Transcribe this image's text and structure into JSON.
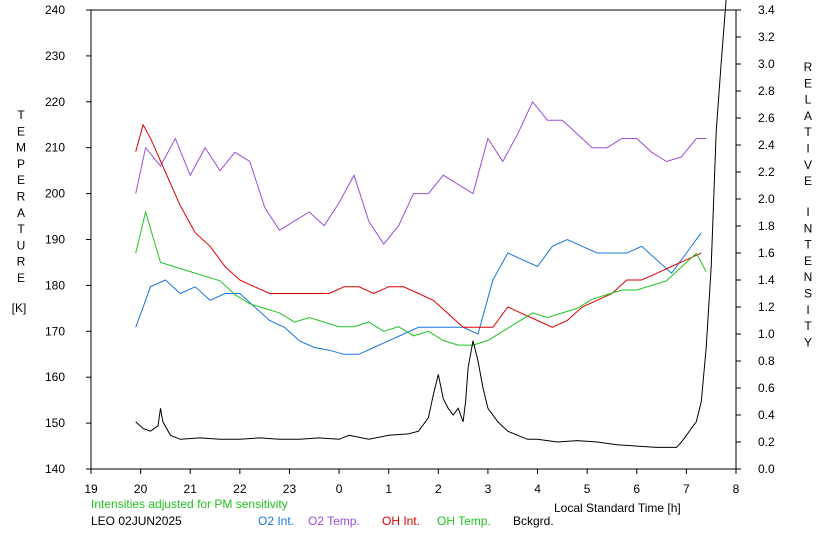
{
  "chart_data": {
    "type": "line",
    "left_axis": {
      "label_letters": [
        "T",
        "E",
        "M",
        "P",
        "E",
        "R",
        "A",
        "T",
        "U",
        "R",
        "E"
      ],
      "unit": "[K]",
      "ylim": [
        140,
        240
      ],
      "ticks": [
        "140",
        "150",
        "160",
        "170",
        "180",
        "190",
        "200",
        "210",
        "220",
        "230",
        "240"
      ]
    },
    "right_axis": {
      "label_letters_1": [
        "R",
        "E",
        "L",
        "A",
        "T",
        "I",
        "V",
        "E"
      ],
      "label_letters_2": [
        "I",
        "N",
        "T",
        "E",
        "N",
        "S",
        "I",
        "T",
        "Y"
      ],
      "ylim": [
        0.0,
        3.4
      ],
      "ticks": [
        "0.0",
        "0.2",
        "0.4",
        "0.6",
        "0.8",
        "1.0",
        "1.2",
        "1.4",
        "1.6",
        "1.8",
        "2.0",
        "2.2",
        "2.4",
        "2.6",
        "2.8",
        "3.0",
        "3.2",
        "3.4"
      ]
    },
    "x_axis": {
      "label": "Local Standard Time [h]",
      "xlim": [
        19,
        32
      ],
      "ticks": [
        "19",
        "20",
        "21",
        "22",
        "23",
        "0",
        "1",
        "2",
        "3",
        "4",
        "5",
        "6",
        "7",
        "8"
      ]
    },
    "note": "Intensities adjusted for PM sensitivity",
    "station": "LEO 02JUN2025",
    "legend": [
      {
        "label": "O2 Int.",
        "color": "#1a75e0"
      },
      {
        "label": "O2 Temp.",
        "color": "#9b4fd8"
      },
      {
        "label": "OH Int.",
        "color": "#e00000"
      },
      {
        "label": "OH Temp.",
        "color": "#22c322"
      },
      {
        "label": "Bckgrd.",
        "color": "#000000"
      }
    ],
    "series": [
      {
        "name": "O2 Int.",
        "axis": "right",
        "color": "#1a75e0",
        "x": [
          19.9,
          20.2,
          20.5,
          20.8,
          21.1,
          21.4,
          21.7,
          22.0,
          22.3,
          22.6,
          22.9,
          23.2,
          23.5,
          23.8,
          24.1,
          24.4,
          24.7,
          25.0,
          25.3,
          25.6,
          25.9,
          26.2,
          26.5,
          26.8,
          27.1,
          27.4,
          27.7,
          28.0,
          28.3,
          28.6,
          28.9,
          29.2,
          29.5,
          29.8,
          30.1,
          30.4,
          30.7,
          31.0,
          31.3
        ],
        "y": [
          1.05,
          1.35,
          1.4,
          1.3,
          1.35,
          1.25,
          1.3,
          1.3,
          1.2,
          1.1,
          1.05,
          0.95,
          0.9,
          0.88,
          0.85,
          0.85,
          0.9,
          0.95,
          1.0,
          1.05,
          1.05,
          1.05,
          1.05,
          1.0,
          1.4,
          1.6,
          1.55,
          1.5,
          1.65,
          1.7,
          1.65,
          1.6,
          1.6,
          1.6,
          1.65,
          1.55,
          1.45,
          1.6,
          1.75
        ]
      },
      {
        "name": "O2 Temp.",
        "axis": "left",
        "color": "#9b4fd8",
        "x": [
          19.9,
          20.1,
          20.4,
          20.7,
          21.0,
          21.3,
          21.6,
          21.9,
          22.2,
          22.5,
          22.8,
          23.1,
          23.4,
          23.7,
          24.0,
          24.3,
          24.6,
          24.9,
          25.2,
          25.5,
          25.8,
          26.1,
          26.4,
          26.7,
          27.0,
          27.3,
          27.6,
          27.9,
          28.2,
          28.5,
          28.8,
          29.1,
          29.4,
          29.7,
          30.0,
          30.3,
          30.6,
          30.9,
          31.2,
          31.4
        ],
        "y": [
          200,
          210,
          206,
          212,
          204,
          210,
          205,
          209,
          207,
          197,
          192,
          194,
          196,
          193,
          198,
          204,
          194,
          189,
          193,
          200,
          200,
          204,
          202,
          200,
          212,
          207,
          213,
          220,
          216,
          216,
          213,
          210,
          210,
          212,
          212,
          209,
          207,
          208,
          212,
          212
        ]
      },
      {
        "name": "OH Int.",
        "axis": "right",
        "color": "#e00000",
        "x": [
          19.9,
          20.05,
          20.2,
          20.5,
          20.8,
          21.1,
          21.4,
          21.7,
          22.0,
          22.3,
          22.6,
          22.9,
          23.2,
          23.5,
          23.8,
          24.1,
          24.4,
          24.7,
          25.0,
          25.3,
          25.6,
          25.9,
          26.2,
          26.5,
          26.8,
          27.1,
          27.4,
          27.7,
          28.0,
          28.3,
          28.6,
          28.9,
          29.2,
          29.5,
          29.8,
          30.1,
          30.4,
          30.7,
          31.0,
          31.3
        ],
        "y": [
          2.35,
          2.55,
          2.45,
          2.2,
          1.95,
          1.75,
          1.65,
          1.5,
          1.4,
          1.35,
          1.3,
          1.3,
          1.3,
          1.3,
          1.3,
          1.35,
          1.35,
          1.3,
          1.35,
          1.35,
          1.3,
          1.25,
          1.15,
          1.05,
          1.05,
          1.05,
          1.2,
          1.15,
          1.1,
          1.05,
          1.1,
          1.2,
          1.25,
          1.3,
          1.4,
          1.4,
          1.45,
          1.5,
          1.55,
          1.6
        ]
      },
      {
        "name": "OH Temp.",
        "axis": "left",
        "color": "#22c322",
        "x": [
          19.9,
          20.1,
          20.4,
          20.7,
          21.0,
          21.3,
          21.6,
          21.9,
          22.2,
          22.5,
          22.8,
          23.1,
          23.4,
          23.7,
          24.0,
          24.3,
          24.6,
          24.9,
          25.2,
          25.5,
          25.8,
          26.1,
          26.4,
          26.7,
          27.0,
          27.3,
          27.6,
          27.9,
          28.2,
          28.5,
          28.8,
          29.1,
          29.4,
          29.7,
          30.0,
          30.3,
          30.6,
          30.9,
          31.2,
          31.4
        ],
        "y": [
          187,
          196,
          185,
          184,
          183,
          182,
          181,
          178,
          176,
          175,
          174,
          172,
          173,
          172,
          171,
          171,
          172,
          170,
          171,
          169,
          170,
          168,
          167,
          167,
          168,
          170,
          172,
          174,
          173,
          174,
          175,
          177,
          178,
          179,
          179,
          180,
          181,
          184,
          187,
          183
        ]
      },
      {
        "name": "Bckgrd.",
        "axis": "right",
        "color": "#000000",
        "x": [
          19.9,
          20.05,
          20.2,
          20.35,
          20.4,
          20.45,
          20.6,
          20.8,
          21.2,
          21.6,
          22.0,
          22.4,
          22.8,
          23.2,
          23.6,
          24.0,
          24.2,
          24.6,
          25.0,
          25.4,
          25.6,
          25.8,
          25.9,
          26.0,
          26.1,
          26.2,
          26.3,
          26.4,
          26.5,
          26.55,
          26.6,
          26.7,
          26.8,
          26.9,
          27.0,
          27.2,
          27.4,
          27.6,
          27.8,
          28.0,
          28.4,
          28.8,
          29.2,
          29.6,
          30.0,
          30.4,
          30.8,
          30.9,
          31.0,
          31.1,
          31.2,
          31.3,
          31.4,
          31.5,
          31.6,
          31.7,
          31.8
        ],
        "y": [
          0.35,
          0.3,
          0.28,
          0.32,
          0.45,
          0.35,
          0.25,
          0.22,
          0.23,
          0.22,
          0.22,
          0.23,
          0.22,
          0.22,
          0.23,
          0.22,
          0.25,
          0.22,
          0.25,
          0.26,
          0.28,
          0.38,
          0.55,
          0.7,
          0.52,
          0.45,
          0.4,
          0.45,
          0.35,
          0.5,
          0.75,
          0.95,
          0.8,
          0.6,
          0.45,
          0.35,
          0.28,
          0.25,
          0.22,
          0.22,
          0.2,
          0.21,
          0.2,
          0.18,
          0.17,
          0.16,
          0.16,
          0.2,
          0.25,
          0.3,
          0.35,
          0.5,
          0.9,
          1.5,
          2.5,
          3.0,
          3.5
        ]
      }
    ]
  }
}
